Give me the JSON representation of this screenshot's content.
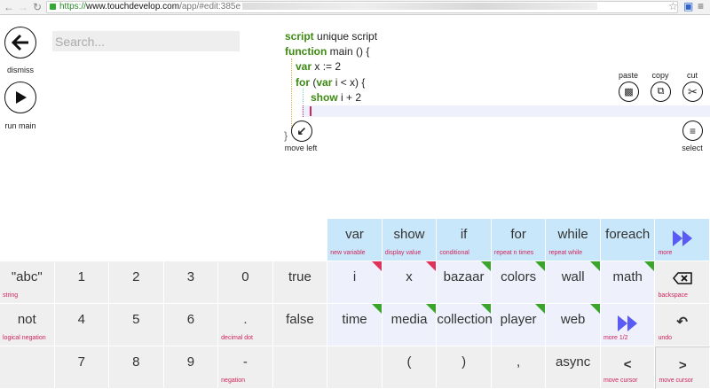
{
  "browser": {
    "url_scheme": "https://",
    "url_domain": "www.touchdevelop.com",
    "url_path": "/app/#edit:385e"
  },
  "sidebar": {
    "dismiss": "dismiss",
    "run": "run main"
  },
  "search": {
    "placeholder": "Search..."
  },
  "code": {
    "l1_kw": "script",
    "l1": " unique script",
    "l2_kw": "function",
    "l2": " main () {",
    "l3_kw": "var",
    "l3": " x := 2",
    "l4_kw": "for",
    "l4a": " (",
    "l4_kw2": "var",
    "l4b": " i < x) {",
    "l5_kw": "show",
    "l5": " i + 2",
    "close": "}"
  },
  "actions": {
    "paste": "paste",
    "copy": "copy",
    "cut": "cut",
    "select": "select",
    "move_left": "move left"
  },
  "keyboard": {
    "rows": [
      [
        null,
        null,
        null,
        null,
        null,
        null,
        {
          "m": "var",
          "s": "new variable",
          "c": "b"
        },
        {
          "m": "show",
          "s": "display value",
          "c": "b"
        },
        {
          "m": "if",
          "s": "conditional",
          "c": "b"
        },
        {
          "m": "for",
          "s": "repeat n times",
          "c": "b"
        },
        {
          "m": "while",
          "s": "repeat while",
          "c": "b"
        },
        {
          "m": "foreach",
          "s": "",
          "c": "b"
        },
        {
          "icon": "fast-forward",
          "s": "more",
          "c": "b"
        }
      ],
      [
        {
          "m": "\"abc\"",
          "s": "string",
          "c": "g"
        },
        {
          "m": "1",
          "c": "g"
        },
        {
          "m": "2",
          "c": "g"
        },
        {
          "m": "3",
          "c": "g"
        },
        {
          "m": "0",
          "c": "g"
        },
        {
          "m": "true",
          "c": "g"
        },
        {
          "m": "i",
          "c": "l",
          "tri": "red"
        },
        {
          "m": "x",
          "c": "l",
          "tri": "red"
        },
        {
          "m": "bazaar",
          "c": "l",
          "tri": "green"
        },
        {
          "m": "colors",
          "c": "l",
          "tri": "green"
        },
        {
          "m": "wall",
          "c": "l",
          "tri": "green"
        },
        {
          "m": "math",
          "c": "l",
          "tri": "green"
        },
        {
          "icon": "backspace",
          "s": "backspace",
          "c": "g"
        }
      ],
      [
        {
          "m": "not",
          "s": "logical negation",
          "c": "g"
        },
        {
          "m": "4",
          "c": "g"
        },
        {
          "m": "5",
          "c": "g"
        },
        {
          "m": "6",
          "c": "g"
        },
        {
          "m": ".",
          "s": "decimal dot",
          "c": "g"
        },
        {
          "m": "false",
          "c": "g"
        },
        {
          "m": "time",
          "c": "l",
          "tri": "green"
        },
        {
          "m": "media",
          "c": "l",
          "tri": "green"
        },
        {
          "m": "collections",
          "c": "l",
          "tri": "green"
        },
        {
          "m": "player",
          "c": "l",
          "tri": "green"
        },
        {
          "m": "web",
          "c": "l",
          "tri": "green"
        },
        {
          "icon": "fast-forward",
          "s": "more 1/2",
          "c": "l"
        },
        {
          "icon": "undo",
          "s": "undo",
          "c": "g"
        }
      ],
      [
        {
          "m": "",
          "c": "g"
        },
        {
          "m": "7",
          "c": "g"
        },
        {
          "m": "8",
          "c": "g"
        },
        {
          "m": "9",
          "c": "g"
        },
        {
          "m": "-",
          "s": "negation",
          "c": "g"
        },
        {
          "m": "",
          "c": "g"
        },
        {
          "m": "",
          "c": "g"
        },
        {
          "m": "(",
          "c": "g"
        },
        {
          "m": ")",
          "c": "g"
        },
        {
          "m": ",",
          "c": "g"
        },
        {
          "m": "async",
          "c": "g"
        },
        {
          "m": "<",
          "s": "move cursor",
          "c": "g"
        },
        {
          "m": ">",
          "s": "move cursor",
          "c": "g"
        }
      ]
    ]
  },
  "colors": {
    "keyword": "#3d8a12",
    "sublabel": "#d0245a",
    "accent_blue": "#5a5af5"
  }
}
